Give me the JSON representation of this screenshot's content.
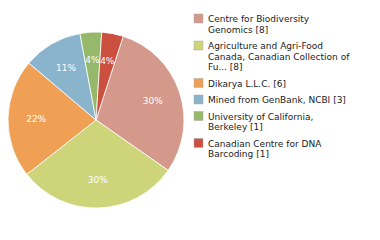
{
  "chart_data": {
    "type": "pie",
    "categories": [
      "Centre for Biodiversity\nGenomics [8]",
      "Agriculture and Agri-Food\nCanada, Canadian Collection of\nFu... [8]",
      "Dikarya L.L.C. [6]",
      "Mined from GenBank, NCBI [3]",
      "University of California,\nBerkeley [1]",
      "Canadian Centre for DNA\nBarcoding [1]"
    ],
    "values": [
      30,
      30,
      22,
      11,
      4,
      4
    ],
    "value_labels": [
      "30%",
      "30%",
      "22%",
      "11%",
      "4%",
      "4%"
    ],
    "colors": [
      "#d4998a",
      "#cdd47a",
      "#f0a055",
      "#8ab4cc",
      "#96b86a",
      "#cc5040"
    ],
    "data_labels": true,
    "legend": "right"
  }
}
